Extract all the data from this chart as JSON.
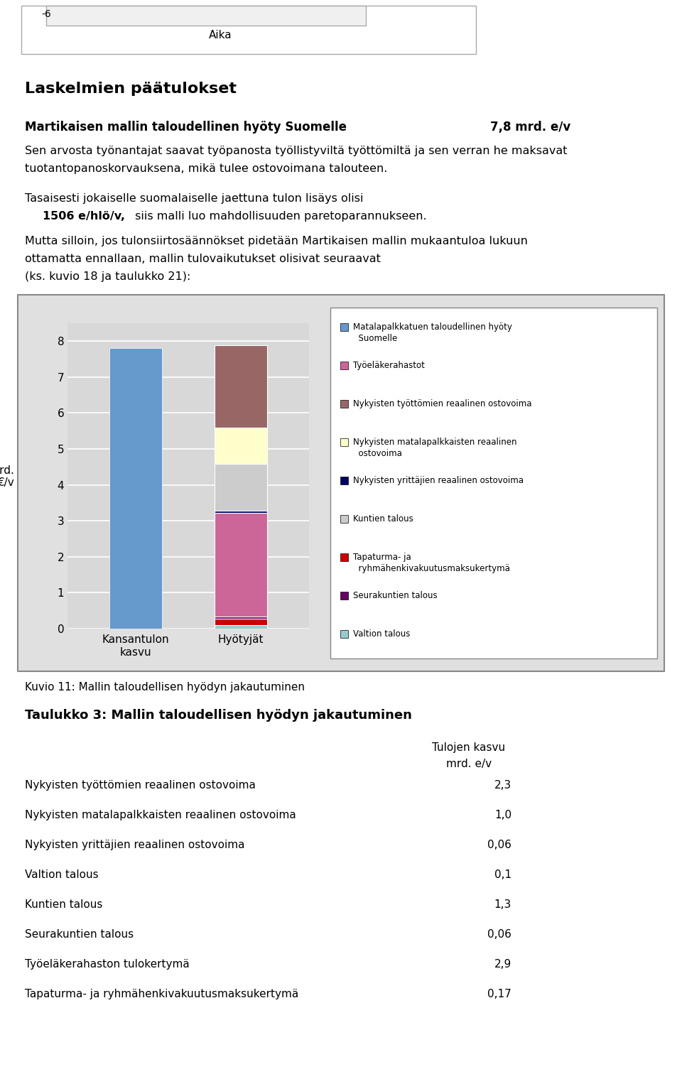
{
  "top_chart_remnant": {
    "label": "-6",
    "xlabel": "Aika"
  },
  "section1_title": "Laskelmien päätulokset",
  "section1_bold_line": "Martikaisen mallin taloudellinen hyöty Suomelle",
  "section1_value": "7,8 mrd. e/v",
  "section1_text1": "Sen arvosta työnantajat saavat työpanosta työllistyviltä työttömiltä ja sen verran he maksavat",
  "section1_text2": "tuotantopanoskorvauksena, mikä tulee ostovoimana talouteen.",
  "section1_text3": "Tasaisesti jokaiselle suomalaiselle jaettuna tulon lisäys olisi",
  "section1_bold2": "1506 e/hlö/v,",
  "section1_text4": " siis malli luo mahdollisuuden paretoparannukseen.",
  "section1_text5": "Mutta silloin, jos tulonsiirtosäännökset pidetään Martikaisen mallin mukaantuloa lukuun",
  "section1_text6": "ottamatta ennallaan, mallin tulovaikutukset olisivat seuraavat",
  "section1_text7": "(ks. kuvio 18 ja taulukko 21):",
  "chart": {
    "categories": [
      "Kansantulon\nkasvu",
      "Hyötyjät"
    ],
    "ylabel": "Mrd.\n€/v",
    "ylim": [
      0,
      8.5
    ],
    "yticks": [
      0,
      1,
      2,
      3,
      4,
      5,
      6,
      7,
      8
    ],
    "bar_width": 0.5,
    "bar1_total": 7.8,
    "bar1_color": "#6699CC",
    "bar1_label": "Matalapalkkatuen taloudellinen hyöty\n  Suomelle",
    "stacked_segments": [
      {
        "value": 0.1,
        "color": "#99CCCC",
        "label": "Valtion talous"
      },
      {
        "value": 0.17,
        "color": "#CC0000",
        "label": "Tapaturma- ja\n  ryhmähenkivakuutusmaksukertymä"
      },
      {
        "value": 0.06,
        "color": "#660066",
        "label": "Seurakuntien talous"
      },
      {
        "value": 2.9,
        "color": "#CC6699",
        "label": "Työeläkerahastot"
      },
      {
        "value": 0.06,
        "color": "#000066",
        "label": "Nykyisten yrittäjien reaalinen ostovoima"
      },
      {
        "value": 1.3,
        "color": "#CCCCCC",
        "label": "Kuntien talous"
      },
      {
        "value": 1.0,
        "color": "#FFFFCC",
        "label": "Nykyisten matalapalkkaisten reaalinen\n  ostovoima"
      },
      {
        "value": 2.3,
        "color": "#996666",
        "label": "Nykyisten työttömien reaalinen ostovoima"
      }
    ]
  },
  "caption": "Kuvio 11: Mallin taloudellisen hyödyn jakautuminen",
  "table_title": "Taulukko 3: Mallin taloudellisen hyödyn jakautuminen",
  "table_col_header1": "Tulojen kasvu",
  "table_col_header2": "mrd. e/v",
  "table_rows": [
    [
      "Nykyisten työttömien reaalinen ostovoima",
      "2,3"
    ],
    [
      "Nykyisten matalapalkkaisten reaalinen ostovoima",
      "1,0"
    ],
    [
      "Nykyisten yrittäjien reaalinen ostovoima",
      "0,06"
    ],
    [
      "Valtion talous",
      "0,1"
    ],
    [
      "Kuntien talous",
      "1,3"
    ],
    [
      "Seurakuntien talous",
      "0,06"
    ],
    [
      "Työeläkerahaston tulokertymä",
      "2,9"
    ],
    [
      "Tapaturma- ja ryhmähenkivakuutusmaksukertymä",
      "0,17"
    ]
  ]
}
